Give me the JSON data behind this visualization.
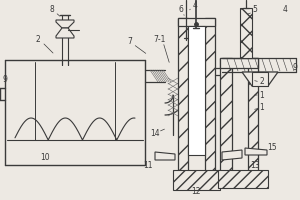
{
  "bg_color": "#ede9e3",
  "line_color": "#3a3a3a",
  "figsize": [
    3.0,
    2.0
  ],
  "dpi": 100,
  "lw_main": 0.9,
  "lw_thin": 0.5
}
